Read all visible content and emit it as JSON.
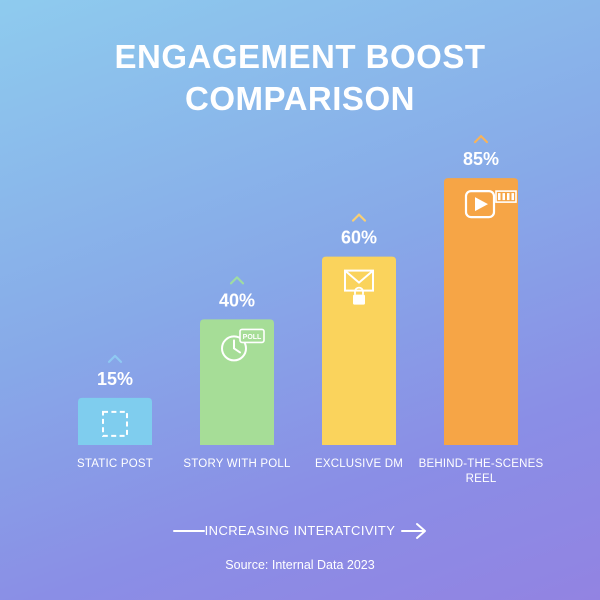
{
  "title_line1": "ENGAGEMENT BOOST",
  "title_line2": "COMPARISON",
  "footer": {
    "axis_label": "INCREASING INTERATCIVITY",
    "source": "Source: Internal Data 2023"
  },
  "colors": {
    "static_post": "#7fcdee",
    "story_with_poll": "#a6dd97",
    "exclusive_dm": "#fad35c",
    "behind_the_scenes_reel": "#f6a546",
    "text": "#ffffff"
  },
  "chart_data": {
    "type": "bar",
    "categories": [
      "STATIC POST",
      "STORY WITH POLL",
      "EXCLUSIVE DM",
      "BEHIND-THE-SCENES REEL"
    ],
    "values": [
      15,
      40,
      60,
      85
    ],
    "data_labels": [
      "15%",
      "40%",
      "60%",
      "85%"
    ],
    "category_colors": [
      "#7fcdee",
      "#a6dd97",
      "#fad35c",
      "#f6a546"
    ],
    "caret_colors": [
      "#8fc9f2",
      "#9fdca2",
      "#f8cf74",
      "#f6b35c"
    ],
    "icons": [
      "dashed-square-icon",
      "clock-poll-icon",
      "envelope-lock-icon",
      "video-play-icon"
    ],
    "ylim": [
      0,
      100
    ],
    "grid": false,
    "legend": "none",
    "title": "ENGAGEMENT BOOST COMPARISON",
    "xlabel": "INCREASING INTERATCIVITY",
    "ylabel": ""
  }
}
